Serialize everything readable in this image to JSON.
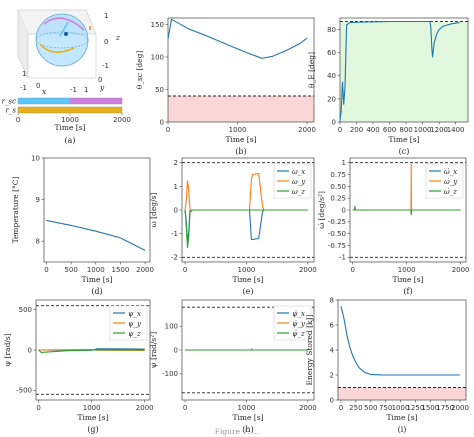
{
  "caption": "Figure 7: ...",
  "colors": {
    "blue": "#1f77b4",
    "orange": "#ff7f0e",
    "green": "#2ca02c",
    "violet": "#d17ce0",
    "cyan": "#58c7ff",
    "gold": "#e8b019",
    "pink_band": "#f5b5b5",
    "green_band": "#c9f0c3",
    "limit": "#222222"
  },
  "chart_data": [
    {
      "id": "a",
      "label": "(a)",
      "type": "other",
      "sphere": {
        "axes": [
          "x",
          "y",
          "z"
        ],
        "ticks": {
          "x": [
            "1",
            "0",
            "-1"
          ],
          "y": [
            "-1",
            "0",
            "1"
          ],
          "z": [
            "-1",
            "0",
            "1"
          ]
        }
      },
      "timeline": {
        "xlabel": "Time [s]",
        "xticks": [
          0,
          1000,
          2000
        ],
        "xlim": [
          0,
          2000
        ],
        "rows": [
          {
            "name": "r_sc",
            "color": "#58c7ff",
            "color2": "#d17ce0",
            "switch_at": 1000
          },
          {
            "name": "r_s",
            "color": "#e8b019",
            "color2": "#e8b019",
            "switch_at": 1000
          }
        ]
      }
    },
    {
      "id": "b",
      "label": "(b)",
      "type": "line",
      "xlabel": "Time [s]",
      "ylabel": "θ_sc [deg]",
      "xlim": [
        0,
        2100
      ],
      "ylim": [
        0,
        160
      ],
      "xticks": [
        0,
        1000,
        2000
      ],
      "yticks": [
        0,
        50,
        100,
        150
      ],
      "bands": [
        {
          "y0": 0,
          "y1": 40,
          "color": "pink_band"
        }
      ],
      "hlines": [
        {
          "y": 40,
          "dashed": true
        }
      ],
      "series": [
        {
          "name": "θsc",
          "color": "blue",
          "x": [
            0,
            50,
            150,
            300,
            500,
            700,
            900,
            1100,
            1250,
            1350,
            1500,
            1700,
            1900,
            2000
          ],
          "y": [
            128,
            158,
            152,
            143,
            135,
            126,
            117,
            108,
            102,
            98,
            101,
            110,
            121,
            129
          ]
        }
      ]
    },
    {
      "id": "c",
      "label": "(c)",
      "type": "line",
      "xlabel": "Time [s]",
      "ylabel": "θ_E [deg]",
      "xlim": [
        0,
        1550
      ],
      "ylim": [
        0,
        90
      ],
      "xticks": [
        0,
        200,
        400,
        600,
        800,
        1000,
        1200,
        1400
      ],
      "yticks": [
        0,
        20,
        40,
        60,
        80
      ],
      "bands": [
        {
          "y0": 0,
          "y1": 87,
          "color": "green_band"
        }
      ],
      "hlines": [
        {
          "y": 87,
          "dashed": true
        }
      ],
      "series": [
        {
          "name": "θE",
          "color": "blue",
          "x": [
            0,
            15,
            30,
            45,
            60,
            80,
            120,
            300,
            600,
            900,
            1090,
            1100,
            1110,
            1120,
            1140,
            1170,
            1200,
            1250,
            1350,
            1450
          ],
          "y": [
            1,
            10,
            35,
            15,
            30,
            84,
            86,
            86.5,
            87,
            87,
            87,
            82,
            66,
            56,
            68,
            76,
            80,
            83,
            85,
            86
          ]
        }
      ]
    },
    {
      "id": "d",
      "label": "(d)",
      "type": "line",
      "xlabel": "Time [s]",
      "ylabel": "Temperature [°C]",
      "xlim": [
        -50,
        2100
      ],
      "ylim": [
        7.5,
        10
      ],
      "xticks": [
        0,
        500,
        1000,
        1500,
        2000
      ],
      "yticks": [
        8,
        9,
        10
      ],
      "series": [
        {
          "name": "T",
          "color": "blue",
          "x": [
            0,
            500,
            1000,
            1500,
            2000
          ],
          "y": [
            8.5,
            8.38,
            8.24,
            8.08,
            7.78
          ]
        }
      ]
    },
    {
      "id": "e",
      "label": "(e)",
      "type": "line",
      "xlabel": "Time [s]",
      "ylabel": "ω [deg/s]",
      "xlim": [
        -50,
        2100
      ],
      "ylim": [
        -2.2,
        2.2
      ],
      "xticks": [
        0,
        1000,
        2000
      ],
      "yticks": [
        -2,
        -1,
        0,
        1,
        2
      ],
      "hlines": [
        {
          "y": 2,
          "dashed": true
        },
        {
          "y": -2,
          "dashed": true
        }
      ],
      "legend": [
        "ω_x",
        "ω_y",
        "ω_z"
      ],
      "series": [
        {
          "name": "ω_x",
          "color": "blue",
          "x": [
            0,
            20,
            40,
            60,
            80,
            120,
            1050,
            1080,
            1100,
            1200,
            1260,
            1280,
            2000
          ],
          "y": [
            0,
            -0.5,
            -1.3,
            -0.9,
            0,
            0,
            0,
            -1.25,
            -1.25,
            -1.2,
            -0.1,
            0,
            0
          ]
        },
        {
          "name": "ω_y",
          "color": "orange",
          "x": [
            0,
            20,
            40,
            60,
            80,
            120,
            1050,
            1080,
            1100,
            1200,
            1260,
            1280,
            2000
          ],
          "y": [
            0,
            0.4,
            1.25,
            0.8,
            0,
            0,
            0,
            1.3,
            1.5,
            1.55,
            0.2,
            0,
            0
          ]
        },
        {
          "name": "ω_z",
          "color": "green",
          "x": [
            0,
            20,
            40,
            60,
            80,
            120,
            2000
          ],
          "y": [
            0,
            -0.7,
            -1.6,
            -1.1,
            -0.1,
            0,
            0
          ]
        }
      ]
    },
    {
      "id": "f",
      "label": "(f)",
      "type": "line",
      "xlabel": "Time [s]",
      "ylabel": "ω̇ [deg/s²]",
      "xlim": [
        -50,
        2100
      ],
      "ylim": [
        -1.1,
        1.1
      ],
      "xticks": [
        0,
        1000,
        2000
      ],
      "yticks": [
        -1.0,
        -0.75,
        -0.5,
        -0.25,
        0.0,
        0.25,
        0.5,
        0.75,
        1.0
      ],
      "hlines": [
        {
          "y": 1,
          "dashed": true
        },
        {
          "y": -1,
          "dashed": true
        }
      ],
      "legend": [
        "ω̇_x",
        "ω̇_y",
        "ω̇_z"
      ],
      "series": [
        {
          "name": "ω̇_x",
          "color": "blue",
          "x": [
            0,
            1080,
            1085,
            1090,
            2000
          ],
          "y": [
            0,
            0,
            -0.1,
            0,
            0
          ]
        },
        {
          "name": "ω̇_y",
          "color": "orange",
          "x": [
            0,
            1080,
            1085,
            1090,
            2000
          ],
          "y": [
            0,
            0,
            0.98,
            0,
            0
          ]
        },
        {
          "name": "ω̇_z",
          "color": "green",
          "x": [
            0,
            30,
            40,
            50,
            1080,
            1085,
            1090,
            2000
          ],
          "y": [
            0,
            0,
            0.08,
            0,
            0,
            -0.1,
            0,
            0
          ]
        }
      ]
    },
    {
      "id": "g",
      "label": "(g)",
      "type": "line",
      "xlabel": "Time [s]",
      "ylabel": "ψ [rad/s]",
      "xlim": [
        -50,
        2100
      ],
      "ylim": [
        -620,
        620
      ],
      "xticks": [
        0,
        1000,
        2000
      ],
      "yticks": [
        -500,
        0,
        500
      ],
      "hlines": [
        {
          "y": 550,
          "dashed": true
        },
        {
          "y": -550,
          "dashed": true
        }
      ],
      "legend": [
        "ψ_x",
        "ψ_y",
        "ψ_z"
      ],
      "series": [
        {
          "name": "ψ_x",
          "color": "blue",
          "x": [
            0,
            500,
            1000,
            1100,
            2000
          ],
          "y": [
            0,
            -2,
            -4,
            15,
            12
          ]
        },
        {
          "name": "ψ_y",
          "color": "orange",
          "x": [
            0,
            500,
            1000,
            1100,
            2000
          ],
          "y": [
            0,
            4,
            5,
            -3,
            -5
          ]
        },
        {
          "name": "ψ_z",
          "color": "green",
          "x": [
            0,
            50,
            500,
            1000,
            2000
          ],
          "y": [
            0,
            -30,
            -10,
            0,
            0
          ]
        }
      ]
    },
    {
      "id": "h",
      "label": "(h)",
      "type": "line",
      "xlabel": "Time [s]",
      "ylabel": "ψ̇ [rad/s²]",
      "xlim": [
        -50,
        2100
      ],
      "ylim": [
        -210,
        210
      ],
      "xticks": [
        0,
        1000,
        2000
      ],
      "yticks": [
        -100,
        0,
        100
      ],
      "hlines": [
        {
          "y": 180,
          "dashed": true
        },
        {
          "y": -180,
          "dashed": true
        }
      ],
      "legend": [
        "ψ̇_x",
        "ψ̇_y",
        "ψ̇_z"
      ],
      "series": [
        {
          "name": "ψ̇_x",
          "color": "blue",
          "x": [
            0,
            2000
          ],
          "y": [
            0,
            0
          ]
        },
        {
          "name": "ψ̇_y",
          "color": "orange",
          "x": [
            0,
            2000
          ],
          "y": [
            0,
            0
          ]
        },
        {
          "name": "ψ̇_z",
          "color": "green",
          "x": [
            0,
            1080,
            1085,
            1090,
            2000
          ],
          "y": [
            0,
            0,
            6,
            0,
            0
          ]
        }
      ]
    },
    {
      "id": "i",
      "label": "(i)",
      "type": "line",
      "xlabel": "Time [s]",
      "ylabel": "Energy Stored [kJ]",
      "xlim": [
        -50,
        2100
      ],
      "ylim": [
        0,
        8
      ],
      "xticks": [
        0,
        250,
        500,
        750,
        1000,
        1250,
        1500,
        1750,
        2000
      ],
      "yticks": [
        0,
        2,
        4,
        6,
        8
      ],
      "bands": [
        {
          "y0": 0,
          "y1": 1,
          "color": "pink_band"
        }
      ],
      "hlines": [
        {
          "y": 1,
          "dashed": true
        }
      ],
      "series": [
        {
          "name": "E",
          "color": "blue",
          "x": [
            0,
            50,
            100,
            150,
            200,
            250,
            300,
            400,
            500,
            700,
            1000,
            1500,
            2000
          ],
          "y": [
            7.5,
            6.5,
            5.2,
            4.2,
            3.5,
            3.0,
            2.6,
            2.2,
            2.05,
            2.0,
            2.0,
            2.0,
            2.0
          ]
        }
      ]
    }
  ]
}
